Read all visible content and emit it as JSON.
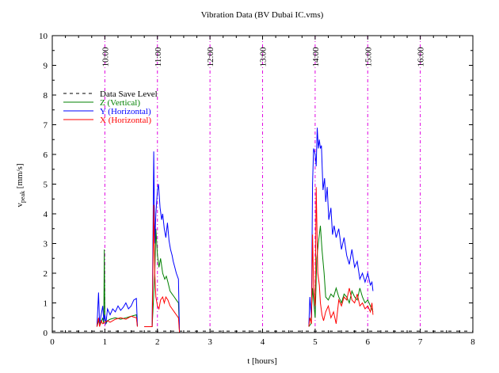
{
  "chart_data": {
    "type": "line",
    "title": "Vibration Data (BV Dubai IC.vms)",
    "xlabel": "t [hours]",
    "ylabel_main": "v",
    "ylabel_sub": "peak",
    "ylabel_unit": " [mm/s]",
    "xlim": [
      0,
      8
    ],
    "ylim": [
      0,
      10
    ],
    "x_ticks": [
      0,
      1,
      2,
      3,
      4,
      5,
      6,
      7,
      8
    ],
    "y_ticks": [
      0,
      1,
      2,
      3,
      4,
      5,
      6,
      7,
      8,
      9,
      10
    ],
    "grid": false,
    "legend_position": "top-left",
    "time_markers": [
      {
        "x": 1,
        "label": "10:00"
      },
      {
        "x": 2,
        "label": "11:00"
      },
      {
        "x": 3,
        "label": "12:00"
      },
      {
        "x": 4,
        "label": "13:00"
      },
      {
        "x": 5,
        "label": "14:00"
      },
      {
        "x": 6,
        "label": "15:00"
      },
      {
        "x": 7,
        "label": "16:00"
      }
    ],
    "data_save_level": {
      "name": "Data Save Level",
      "y": 0.05,
      "color": "#000000"
    },
    "series": [
      {
        "name": "Z (Vertical)",
        "color": "#008000",
        "segments": [
          [
            [
              0.85,
              0.2
            ],
            [
              0.88,
              0.4
            ],
            [
              0.92,
              0.3
            ],
            [
              0.96,
              0.5
            ],
            [
              0.98,
              0.3
            ],
            [
              0.99,
              2.8
            ],
            [
              1.0,
              0.5
            ],
            [
              1.02,
              0.3
            ],
            [
              1.05,
              0.4
            ],
            [
              1.1,
              0.45
            ],
            [
              1.2,
              0.5
            ],
            [
              1.3,
              0.45
            ],
            [
              1.4,
              0.5
            ],
            [
              1.5,
              0.55
            ],
            [
              1.6,
              0.6
            ],
            [
              1.62,
              0.2
            ]
          ],
          [
            [
              1.75,
              0.2
            ],
            [
              1.8,
              0.2
            ],
            [
              1.88,
              0.2
            ],
            [
              1.9,
              0.2
            ],
            [
              1.95,
              2.0
            ],
            [
              1.97,
              3.5
            ],
            [
              2.0,
              2.6
            ],
            [
              2.03,
              2.2
            ],
            [
              2.06,
              2.5
            ],
            [
              2.1,
              2.0
            ],
            [
              2.14,
              1.8
            ],
            [
              2.17,
              1.9
            ],
            [
              2.2,
              1.7
            ],
            [
              2.24,
              1.4
            ],
            [
              2.28,
              1.3
            ],
            [
              2.32,
              1.2
            ],
            [
              2.36,
              1.1
            ],
            [
              2.4,
              1.0
            ],
            [
              2.42,
              0.0
            ]
          ],
          [
            [
              4.88,
              0.2
            ],
            [
              4.92,
              0.3
            ],
            [
              4.95,
              1.5
            ],
            [
              5.0,
              0.5
            ],
            [
              5.03,
              2.5
            ],
            [
              5.06,
              3.0
            ],
            [
              5.1,
              3.6
            ],
            [
              5.13,
              2.8
            ],
            [
              5.17,
              2.0
            ],
            [
              5.2,
              1.2
            ],
            [
              5.25,
              1.1
            ],
            [
              5.3,
              1.3
            ],
            [
              5.35,
              1.2
            ],
            [
              5.4,
              1.5
            ],
            [
              5.45,
              1.2
            ],
            [
              5.5,
              1.0
            ],
            [
              5.55,
              1.3
            ],
            [
              5.6,
              1.2
            ],
            [
              5.65,
              1.0
            ],
            [
              5.7,
              1.4
            ],
            [
              5.75,
              1.2
            ],
            [
              5.8,
              1.1
            ],
            [
              5.85,
              1.5
            ],
            [
              5.9,
              1.2
            ],
            [
              5.95,
              1.0
            ],
            [
              6.0,
              1.1
            ],
            [
              6.05,
              0.9
            ],
            [
              6.1,
              0.7
            ]
          ]
        ]
      },
      {
        "name": "Y (Horizontal)",
        "color": "#0000ff",
        "segments": [
          [
            [
              0.85,
              0.2
            ],
            [
              0.88,
              1.35
            ],
            [
              0.9,
              0.3
            ],
            [
              0.93,
              0.6
            ],
            [
              0.96,
              0.9
            ],
            [
              0.98,
              0.4
            ],
            [
              1.0,
              0.6
            ],
            [
              1.02,
              0.3
            ],
            [
              1.05,
              0.8
            ],
            [
              1.1,
              0.6
            ],
            [
              1.15,
              0.8
            ],
            [
              1.2,
              0.7
            ],
            [
              1.25,
              0.9
            ],
            [
              1.3,
              0.75
            ],
            [
              1.35,
              0.85
            ],
            [
              1.4,
              1.0
            ],
            [
              1.45,
              0.8
            ],
            [
              1.5,
              0.9
            ],
            [
              1.55,
              1.1
            ],
            [
              1.6,
              1.15
            ],
            [
              1.62,
              0.2
            ]
          ],
          [
            [
              1.75,
              0.2
            ],
            [
              1.8,
              0.2
            ],
            [
              1.85,
              0.2
            ],
            [
              1.9,
              0.2
            ],
            [
              1.93,
              6.1
            ],
            [
              1.95,
              3.0
            ],
            [
              1.97,
              4.0
            ],
            [
              2.0,
              4.8
            ],
            [
              2.02,
              5.0
            ],
            [
              2.05,
              4.2
            ],
            [
              2.08,
              3.8
            ],
            [
              2.1,
              4.0
            ],
            [
              2.13,
              3.5
            ],
            [
              2.16,
              3.2
            ],
            [
              2.19,
              3.7
            ],
            [
              2.22,
              3.1
            ],
            [
              2.25,
              2.8
            ],
            [
              2.28,
              2.6
            ],
            [
              2.3,
              2.4
            ],
            [
              2.33,
              2.2
            ],
            [
              2.36,
              2.0
            ],
            [
              2.4,
              1.8
            ],
            [
              2.42,
              0.0
            ]
          ],
          [
            [
              4.88,
              0.2
            ],
            [
              4.9,
              1.2
            ],
            [
              4.93,
              0.5
            ],
            [
              4.95,
              5.0
            ],
            [
              4.97,
              6.2
            ],
            [
              5.0,
              6.0
            ],
            [
              5.02,
              5.6
            ],
            [
              5.04,
              6.9
            ],
            [
              5.06,
              6.2
            ],
            [
              5.08,
              6.5
            ],
            [
              5.1,
              6.2
            ],
            [
              5.12,
              6.3
            ],
            [
              5.15,
              4.8
            ],
            [
              5.18,
              5.2
            ],
            [
              5.2,
              4.4
            ],
            [
              5.23,
              4.9
            ],
            [
              5.26,
              3.8
            ],
            [
              5.3,
              4.2
            ],
            [
              5.33,
              3.3
            ],
            [
              5.36,
              3.6
            ],
            [
              5.4,
              3.2
            ],
            [
              5.45,
              3.5
            ],
            [
              5.5,
              2.8
            ],
            [
              5.55,
              3.2
            ],
            [
              5.6,
              2.6
            ],
            [
              5.65,
              2.3
            ],
            [
              5.7,
              2.8
            ],
            [
              5.75,
              2.2
            ],
            [
              5.8,
              2.4
            ],
            [
              5.85,
              1.8
            ],
            [
              5.9,
              2.0
            ],
            [
              5.95,
              1.7
            ],
            [
              6.0,
              2.0
            ],
            [
              6.05,
              1.6
            ],
            [
              6.08,
              1.7
            ],
            [
              6.1,
              1.4
            ]
          ]
        ]
      },
      {
        "name": "X (Horizontal)",
        "color": "#ff0000",
        "segments": [
          [
            [
              0.85,
              0.2
            ],
            [
              0.88,
              0.5
            ],
            [
              0.9,
              0.2
            ],
            [
              0.93,
              0.4
            ],
            [
              0.96,
              0.3
            ],
            [
              1.0,
              0.35
            ],
            [
              1.05,
              0.4
            ],
            [
              1.1,
              0.35
            ],
            [
              1.2,
              0.45
            ],
            [
              1.3,
              0.5
            ],
            [
              1.4,
              0.45
            ],
            [
              1.5,
              0.55
            ],
            [
              1.6,
              0.5
            ],
            [
              1.62,
              0.2
            ]
          ],
          [
            [
              1.75,
              0.2
            ],
            [
              1.85,
              0.2
            ],
            [
              1.9,
              0.2
            ],
            [
              1.93,
              4.3
            ],
            [
              1.95,
              2.0
            ],
            [
              1.97,
              1.2
            ],
            [
              2.0,
              0.9
            ],
            [
              2.03,
              0.8
            ],
            [
              2.06,
              1.1
            ],
            [
              2.1,
              1.2
            ],
            [
              2.13,
              1.0
            ],
            [
              2.16,
              1.2
            ],
            [
              2.2,
              1.1
            ],
            [
              2.24,
              0.9
            ],
            [
              2.28,
              0.8
            ],
            [
              2.32,
              0.7
            ],
            [
              2.36,
              0.6
            ],
            [
              2.4,
              0.5
            ],
            [
              2.42,
              0.0
            ]
          ],
          [
            [
              4.88,
              0.2
            ],
            [
              4.9,
              0.5
            ],
            [
              4.93,
              0.3
            ],
            [
              4.95,
              3.3
            ],
            [
              4.97,
              1.5
            ],
            [
              5.0,
              0.9
            ],
            [
              5.02,
              4.9
            ],
            [
              5.05,
              2.0
            ],
            [
              5.08,
              1.6
            ],
            [
              5.1,
              1.0
            ],
            [
              5.13,
              0.6
            ],
            [
              5.16,
              0.4
            ],
            [
              5.2,
              0.7
            ],
            [
              5.25,
              0.9
            ],
            [
              5.3,
              0.5
            ],
            [
              5.35,
              0.7
            ],
            [
              5.4,
              0.3
            ],
            [
              5.45,
              1.1
            ],
            [
              5.5,
              0.9
            ],
            [
              5.55,
              1.2
            ],
            [
              5.6,
              1.1
            ],
            [
              5.65,
              1.5
            ],
            [
              5.7,
              1.1
            ],
            [
              5.75,
              1.0
            ],
            [
              5.8,
              1.3
            ],
            [
              5.85,
              0.9
            ],
            [
              5.9,
              1.0
            ],
            [
              5.95,
              0.8
            ],
            [
              6.0,
              0.9
            ],
            [
              6.05,
              0.7
            ],
            [
              6.08,
              1.0
            ],
            [
              6.1,
              0.6
            ]
          ]
        ]
      }
    ]
  }
}
